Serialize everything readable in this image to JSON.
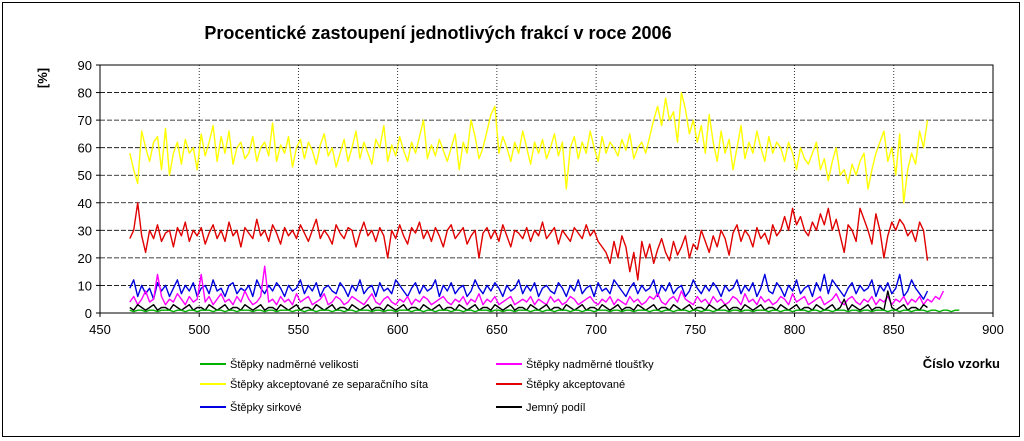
{
  "chart_data": {
    "type": "line",
    "title": "Procentické zastoupení jednotlivých frakcí v roce 2006",
    "xlabel": "Číslo vzorku",
    "ylabel": "[%]",
    "xlim": [
      450,
      900
    ],
    "ylim": [
      0,
      90
    ],
    "xticks": [
      450,
      500,
      550,
      600,
      650,
      700,
      750,
      800,
      850,
      900
    ],
    "yticks": [
      0,
      10,
      20,
      30,
      40,
      50,
      60,
      70,
      80,
      90
    ],
    "grid": "y-dashed, x-dotted",
    "x_start": 465,
    "x_step": 2,
    "series": [
      {
        "name": "Štěpky nadměrné velikosti",
        "color": "#00b000",
        "values": [
          1,
          0.5,
          1,
          1,
          0.5,
          1,
          1,
          0.5,
          1,
          1,
          1,
          0.5,
          1,
          1,
          0.5,
          1,
          1,
          0.5,
          1,
          1,
          1,
          0.5,
          1,
          1,
          0.5,
          1,
          1,
          0.5,
          1,
          1,
          1,
          0.5,
          1,
          1,
          0.5,
          1,
          1,
          0.5,
          1,
          1,
          1,
          0.5,
          1,
          1,
          0.5,
          1,
          1,
          0.5,
          1,
          1,
          1,
          0.5,
          1,
          1,
          0.5,
          1,
          1,
          0.5,
          1,
          1,
          1,
          0.5,
          1,
          1,
          0.5,
          1,
          1,
          0.5,
          1,
          1,
          1,
          0.5,
          1,
          1,
          0.5,
          1,
          1,
          0.5,
          1,
          1,
          1,
          0.5,
          1,
          1,
          0.5,
          1,
          1,
          0.5,
          1,
          1,
          1,
          0.5,
          1,
          1,
          0.5,
          1,
          1,
          0.5,
          1,
          1,
          1,
          0.5,
          1,
          1,
          0.5,
          1,
          1,
          0.5,
          1,
          1,
          1,
          0.5,
          1,
          1,
          0.5,
          1,
          1,
          0.5,
          1,
          1,
          1,
          0.5,
          1,
          1,
          0.5,
          1,
          1,
          0.5,
          1,
          1,
          1,
          0.5,
          1,
          1,
          0.5,
          1,
          1,
          0.5,
          1,
          1,
          1,
          0.5,
          1,
          1,
          0.5,
          1,
          1,
          0.5,
          1,
          1,
          1,
          0.5,
          1,
          1,
          0.5,
          1,
          1,
          0.5,
          1,
          1,
          1,
          0.5,
          1,
          1,
          0.5,
          1,
          1,
          0.5,
          1,
          1,
          1,
          0.5,
          1,
          1,
          0.5,
          1,
          1,
          0.5,
          1,
          1,
          1,
          0.5,
          1,
          1,
          0.5,
          1,
          1,
          0.5,
          1,
          1,
          1,
          0.5,
          1,
          1,
          0.5,
          1,
          1,
          0.5,
          1,
          1,
          1,
          0.5,
          1,
          1,
          0.5,
          1,
          1,
          0.5,
          1,
          1
        ]
      },
      {
        "name": "Štěpky nadměrné tloušťky",
        "color": "#ff00ff",
        "values": [
          4,
          6,
          3,
          5,
          8,
          4,
          5,
          14,
          6,
          3,
          5,
          4,
          7,
          5,
          3,
          6,
          4,
          5,
          14,
          4,
          6,
          3,
          5,
          7,
          4,
          5,
          3,
          6,
          4,
          8,
          5,
          3,
          4,
          6,
          17,
          4,
          5,
          3,
          6,
          4,
          5,
          3,
          7,
          4,
          5,
          6,
          3,
          4,
          5,
          7,
          3,
          4,
          6,
          5,
          3,
          4,
          6,
          5,
          4,
          3,
          5,
          7,
          4,
          3,
          5,
          6,
          4,
          3,
          5,
          4,
          6,
          3,
          5,
          4,
          6,
          5,
          3,
          4,
          5,
          6,
          4,
          3,
          5,
          4,
          6,
          3,
          5,
          4,
          7,
          3,
          5,
          4,
          6,
          3,
          4,
          5,
          6,
          3,
          4,
          5,
          4,
          6,
          3,
          5,
          4,
          3,
          6,
          4,
          5,
          3,
          4,
          6,
          5,
          3,
          4,
          5,
          6,
          4,
          3,
          5,
          4,
          6,
          3,
          5,
          4,
          3,
          6,
          4,
          5,
          3,
          4,
          6,
          5,
          7,
          4,
          3,
          5,
          6,
          4,
          8,
          5,
          4,
          3,
          6,
          4,
          5,
          3,
          6,
          4,
          5,
          3,
          4,
          6,
          5,
          3,
          7,
          4,
          5,
          3,
          6,
          4,
          5,
          3,
          4,
          6,
          5,
          3,
          7,
          4,
          5,
          6,
          3,
          4,
          5,
          6,
          3,
          4,
          5,
          7,
          4,
          3,
          5,
          6,
          4,
          3,
          5,
          4,
          6,
          3,
          5,
          4,
          6,
          3,
          5,
          4,
          6,
          3,
          5,
          4,
          6,
          3,
          5,
          4,
          6,
          5,
          8
        ]
      },
      {
        "name": "Štěpky akceptované ze separačního síta",
        "color": "#ffff00",
        "values": [
          58,
          52,
          47,
          66,
          60,
          55,
          62,
          64,
          52,
          67,
          50,
          58,
          62,
          54,
          63,
          58,
          60,
          52,
          65,
          57,
          62,
          68,
          55,
          64,
          58,
          66,
          54,
          60,
          62,
          56,
          58,
          64,
          55,
          60,
          62,
          57,
          69,
          55,
          61,
          58,
          64,
          53,
          60,
          63,
          56,
          62,
          59,
          54,
          61,
          65,
          57,
          60,
          53,
          58,
          63,
          55,
          60,
          66,
          56,
          62,
          58,
          54,
          63,
          60,
          68,
          55,
          61,
          57,
          64,
          59,
          55,
          62,
          58,
          64,
          70,
          56,
          61,
          57,
          63,
          59,
          55,
          60,
          65,
          52,
          62,
          58,
          70,
          64,
          56,
          60,
          66,
          72,
          75,
          58,
          64,
          60,
          55,
          62,
          58,
          66,
          60,
          54,
          62,
          58,
          63,
          56,
          60,
          65,
          57,
          62,
          45,
          60,
          64,
          56,
          62,
          58,
          66,
          60,
          55,
          64,
          58,
          62,
          60,
          57,
          63,
          59,
          65,
          56,
          60,
          62,
          58,
          64,
          70,
          75,
          68,
          78,
          70,
          73,
          62,
          80,
          74,
          65,
          70,
          62,
          68,
          58,
          72,
          62,
          55,
          66,
          58,
          63,
          52,
          60,
          68,
          56,
          62,
          58,
          66,
          60,
          55,
          64,
          58,
          62,
          60,
          55,
          62,
          58,
          52,
          60,
          56,
          54,
          58,
          62,
          52,
          56,
          48,
          55,
          60,
          50,
          52,
          47,
          54,
          50,
          55,
          58,
          45,
          52,
          58,
          62,
          66,
          55,
          60,
          50,
          65,
          40,
          52,
          58,
          54,
          66,
          60,
          70
        ]
      },
      {
        "name": "Štěpky akceptované",
        "color": "#e00000",
        "values": [
          27,
          30,
          40,
          28,
          22,
          30,
          27,
          32,
          26,
          29,
          30,
          24,
          31,
          28,
          33,
          26,
          30,
          28,
          31,
          25,
          29,
          32,
          27,
          30,
          26,
          33,
          28,
          30,
          24,
          31,
          29,
          27,
          34,
          28,
          30,
          26,
          32,
          29,
          25,
          31,
          28,
          30,
          27,
          32,
          29,
          26,
          30,
          34,
          27,
          30,
          28,
          25,
          32,
          29,
          27,
          31,
          30,
          24,
          29,
          33,
          28,
          30,
          26,
          31,
          28,
          20,
          30,
          27,
          32,
          28,
          25,
          31,
          29,
          33,
          27,
          30,
          26,
          31,
          28,
          24,
          30,
          32,
          27,
          29,
          31,
          25,
          28,
          30,
          20,
          29,
          31,
          27,
          30,
          26,
          32,
          28,
          24,
          30,
          29,
          27,
          31,
          26,
          30,
          28,
          33,
          27,
          29,
          31,
          25,
          30,
          28,
          26,
          31,
          29,
          27,
          32,
          28,
          30,
          26,
          24,
          22,
          18,
          26,
          20,
          28,
          24,
          15,
          22,
          12,
          26,
          20,
          25,
          18,
          23,
          27,
          22,
          19,
          26,
          21,
          24,
          28,
          20,
          25,
          23,
          30,
          26,
          22,
          28,
          24,
          30,
          27,
          21,
          29,
          32,
          26,
          30,
          28,
          24,
          31,
          27,
          29,
          25,
          32,
          28,
          30,
          35,
          30,
          38,
          32,
          35,
          30,
          28,
          33,
          30,
          36,
          32,
          38,
          30,
          34,
          28,
          22,
          32,
          30,
          26,
          38,
          34,
          30,
          25,
          36,
          30,
          20,
          28,
          33,
          30,
          34,
          32,
          28,
          30,
          26,
          33,
          30,
          19
        ]
      },
      {
        "name": "Štěpky sirkové",
        "color": "#0000e0",
        "values": [
          9,
          12,
          6,
          10,
          7,
          9,
          5,
          11,
          8,
          10,
          6,
          9,
          12,
          7,
          10,
          8,
          11,
          6,
          9,
          10,
          7,
          12,
          8,
          9,
          6,
          10,
          11,
          7,
          9,
          8,
          10,
          6,
          12,
          9,
          7,
          10,
          8,
          11,
          9,
          6,
          10,
          8,
          9,
          12,
          7,
          10,
          8,
          11,
          6,
          9,
          10,
          8,
          7,
          11,
          9,
          6,
          10,
          8,
          12,
          7,
          9,
          10,
          6,
          11,
          8,
          9,
          7,
          12,
          10,
          8,
          6,
          9,
          11,
          7,
          10,
          8,
          9,
          12,
          6,
          10,
          8,
          11,
          7,
          9,
          10,
          6,
          8,
          12,
          9,
          7,
          10,
          8,
          11,
          9,
          6,
          10,
          8,
          9,
          12,
          7,
          10,
          8,
          11,
          6,
          9,
          10,
          8,
          7,
          11,
          9,
          6,
          10,
          8,
          12,
          7,
          9,
          10,
          6,
          11,
          8,
          9,
          7,
          12,
          10,
          8,
          6,
          9,
          11,
          7,
          10,
          8,
          9,
          12,
          6,
          10,
          8,
          11,
          7,
          9,
          10,
          6,
          8,
          12,
          9,
          7,
          10,
          8,
          11,
          9,
          6,
          10,
          8,
          9,
          12,
          7,
          10,
          8,
          11,
          6,
          9,
          14,
          8,
          7,
          11,
          9,
          6,
          10,
          8,
          12,
          7,
          9,
          10,
          6,
          11,
          8,
          14,
          7,
          12,
          10,
          8,
          6,
          9,
          11,
          7,
          10,
          8,
          9,
          12,
          6,
          10,
          8,
          11,
          7,
          9,
          14,
          6,
          8,
          12,
          9,
          7,
          5,
          8
        ]
      },
      {
        "name": "Jemný podíl",
        "color": "#000000",
        "values": [
          2,
          1,
          3,
          2,
          1,
          2,
          3,
          1,
          2,
          2,
          1,
          3,
          2,
          1,
          2,
          3,
          1,
          2,
          2,
          1,
          3,
          2,
          1,
          2,
          3,
          1,
          2,
          2,
          1,
          3,
          2,
          1,
          2,
          3,
          1,
          2,
          2,
          1,
          3,
          2,
          1,
          2,
          3,
          1,
          2,
          2,
          1,
          3,
          2,
          1,
          2,
          3,
          1,
          2,
          2,
          1,
          3,
          2,
          1,
          2,
          3,
          1,
          2,
          2,
          1,
          3,
          2,
          1,
          2,
          3,
          1,
          2,
          2,
          1,
          3,
          2,
          1,
          2,
          3,
          1,
          2,
          2,
          1,
          3,
          2,
          1,
          2,
          3,
          1,
          2,
          2,
          1,
          3,
          2,
          1,
          2,
          3,
          1,
          2,
          2,
          1,
          3,
          2,
          1,
          2,
          3,
          1,
          2,
          2,
          1,
          3,
          2,
          1,
          2,
          3,
          1,
          2,
          2,
          1,
          3,
          2,
          1,
          2,
          3,
          1,
          2,
          2,
          1,
          3,
          2,
          1,
          2,
          3,
          1,
          2,
          2,
          1,
          3,
          2,
          1,
          2,
          3,
          1,
          2,
          2,
          1,
          3,
          2,
          1,
          2,
          3,
          1,
          2,
          2,
          1,
          3,
          2,
          1,
          2,
          3,
          1,
          2,
          2,
          1,
          3,
          2,
          1,
          2,
          3,
          1,
          2,
          2,
          1,
          3,
          2,
          1,
          2,
          3,
          1,
          2,
          5,
          1,
          3,
          2,
          1,
          2,
          3,
          1,
          2,
          2,
          1,
          8,
          2,
          1,
          2,
          3,
          1,
          2,
          2,
          1,
          3,
          2
        ]
      }
    ]
  }
}
